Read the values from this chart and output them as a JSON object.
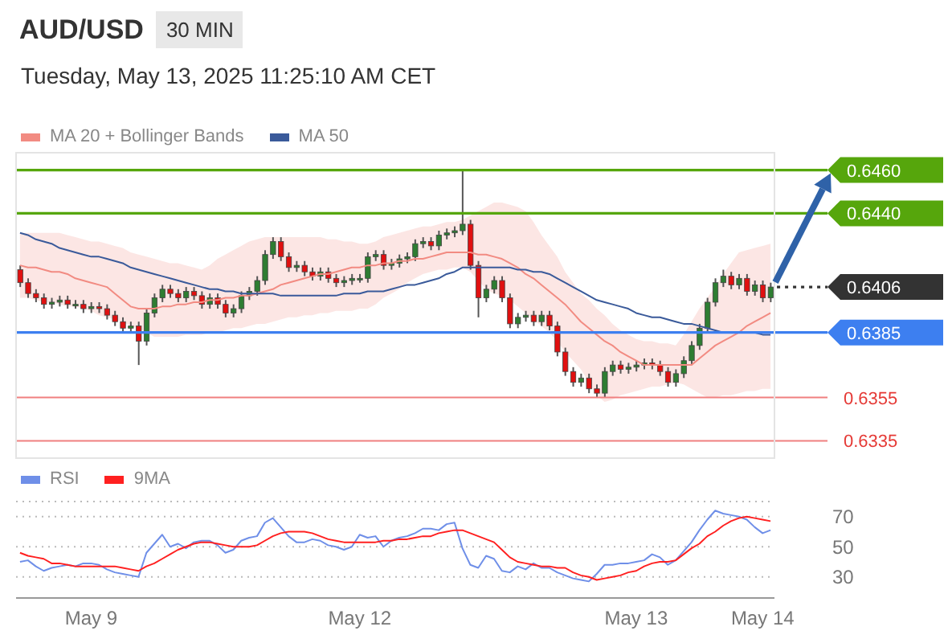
{
  "chart_data": [
    {
      "type": "candlestick",
      "title": "AUD/USD",
      "subtitle": "Tuesday, May 13, 2025 11:25:10 AM CET",
      "annotations": [
        "30 MIN"
      ],
      "legend": "top left",
      "tick_labels": false,
      "ylim": [
        0.6327,
        0.6468
      ],
      "ohlc": [
        [
          0.6414,
          0.6416,
          0.6406,
          0.6408
        ],
        [
          0.6408,
          0.641,
          0.6401,
          0.6403
        ],
        [
          0.6403,
          0.6405,
          0.6399,
          0.6401
        ],
        [
          0.6401,
          0.6403,
          0.6396,
          0.6398
        ],
        [
          0.6398,
          0.6401,
          0.6396,
          0.6399
        ],
        [
          0.6399,
          0.6402,
          0.6397,
          0.64
        ],
        [
          0.64,
          0.6402,
          0.6396,
          0.6398
        ],
        [
          0.6398,
          0.64,
          0.6396,
          0.6398
        ],
        [
          0.6398,
          0.64,
          0.6394,
          0.6396
        ],
        [
          0.6396,
          0.6399,
          0.6394,
          0.6397
        ],
        [
          0.6397,
          0.6399,
          0.6394,
          0.6396
        ],
        [
          0.6396,
          0.6398,
          0.6391,
          0.6393
        ],
        [
          0.6393,
          0.6395,
          0.6388,
          0.639
        ],
        [
          0.639,
          0.6392,
          0.6385,
          0.6387
        ],
        [
          0.6387,
          0.639,
          0.6385,
          0.6388
        ],
        [
          0.6388,
          0.639,
          0.637,
          0.6381
        ],
        [
          0.6381,
          0.6396,
          0.6379,
          0.6394
        ],
        [
          0.6394,
          0.6403,
          0.6392,
          0.6401
        ],
        [
          0.6401,
          0.6407,
          0.6399,
          0.6405
        ],
        [
          0.6405,
          0.6407,
          0.6401,
          0.6403
        ],
        [
          0.6403,
          0.6405,
          0.6399,
          0.6401
        ],
        [
          0.6401,
          0.6406,
          0.6399,
          0.6404
        ],
        [
          0.6404,
          0.6406,
          0.64,
          0.6402
        ],
        [
          0.6402,
          0.6404,
          0.6396,
          0.6398
        ],
        [
          0.6398,
          0.6403,
          0.6396,
          0.6401
        ],
        [
          0.6401,
          0.6403,
          0.6396,
          0.6398
        ],
        [
          0.6398,
          0.64,
          0.6392,
          0.6394
        ],
        [
          0.6394,
          0.6398,
          0.6392,
          0.6396
        ],
        [
          0.6396,
          0.6404,
          0.6394,
          0.6402
        ],
        [
          0.6402,
          0.6406,
          0.64,
          0.6404
        ],
        [
          0.6404,
          0.6411,
          0.6402,
          0.6409
        ],
        [
          0.6409,
          0.6423,
          0.6407,
          0.6421
        ],
        [
          0.6421,
          0.6429,
          0.6419,
          0.6427
        ],
        [
          0.6427,
          0.6429,
          0.6418,
          0.642
        ],
        [
          0.642,
          0.6422,
          0.6413,
          0.6415
        ],
        [
          0.6415,
          0.6418,
          0.6413,
          0.6416
        ],
        [
          0.6416,
          0.6418,
          0.6411,
          0.6413
        ],
        [
          0.6413,
          0.6415,
          0.6409,
          0.6411
        ],
        [
          0.6411,
          0.6415,
          0.6409,
          0.6413
        ],
        [
          0.6413,
          0.6415,
          0.6408,
          0.641
        ],
        [
          0.641,
          0.6412,
          0.6406,
          0.6408
        ],
        [
          0.6408,
          0.6411,
          0.6406,
          0.6409
        ],
        [
          0.6409,
          0.6412,
          0.6407,
          0.641
        ],
        [
          0.641,
          0.6412,
          0.6408,
          0.641
        ],
        [
          0.641,
          0.6422,
          0.6408,
          0.642
        ],
        [
          0.642,
          0.6423,
          0.6418,
          0.6421
        ],
        [
          0.6421,
          0.6423,
          0.6414,
          0.6416
        ],
        [
          0.6416,
          0.6419,
          0.6414,
          0.6417
        ],
        [
          0.6417,
          0.6421,
          0.6415,
          0.6419
        ],
        [
          0.6419,
          0.6422,
          0.6417,
          0.642
        ],
        [
          0.642,
          0.6428,
          0.6418,
          0.6426
        ],
        [
          0.6426,
          0.6429,
          0.6424,
          0.6427
        ],
        [
          0.6427,
          0.6429,
          0.6423,
          0.6425
        ],
        [
          0.6425,
          0.6432,
          0.6423,
          0.643
        ],
        [
          0.643,
          0.6433,
          0.6428,
          0.6431
        ],
        [
          0.6431,
          0.6434,
          0.6429,
          0.6432
        ],
        [
          0.6432,
          0.646,
          0.643,
          0.6435
        ],
        [
          0.6435,
          0.6437,
          0.6414,
          0.6416
        ],
        [
          0.6416,
          0.6418,
          0.6392,
          0.6401
        ],
        [
          0.6401,
          0.6407,
          0.6399,
          0.6405
        ],
        [
          0.6405,
          0.6411,
          0.6403,
          0.6409
        ],
        [
          0.6409,
          0.6411,
          0.6399,
          0.6401
        ],
        [
          0.6401,
          0.6403,
          0.6387,
          0.6389
        ],
        [
          0.6389,
          0.6394,
          0.6387,
          0.6392
        ],
        [
          0.6392,
          0.6395,
          0.639,
          0.6393
        ],
        [
          0.6393,
          0.6395,
          0.6388,
          0.639
        ],
        [
          0.639,
          0.6395,
          0.6388,
          0.6393
        ],
        [
          0.6393,
          0.6395,
          0.6386,
          0.6388
        ],
        [
          0.6388,
          0.639,
          0.6374,
          0.6376
        ],
        [
          0.6376,
          0.6378,
          0.6365,
          0.6367
        ],
        [
          0.6367,
          0.6369,
          0.636,
          0.6362
        ],
        [
          0.6362,
          0.6366,
          0.636,
          0.6364
        ],
        [
          0.6364,
          0.6366,
          0.6357,
          0.6359
        ],
        [
          0.6359,
          0.6361,
          0.6355,
          0.6357
        ],
        [
          0.6357,
          0.6369,
          0.6355,
          0.6367
        ],
        [
          0.6367,
          0.6372,
          0.6365,
          0.637
        ],
        [
          0.637,
          0.6372,
          0.6366,
          0.6368
        ],
        [
          0.6368,
          0.6371,
          0.6366,
          0.6369
        ],
        [
          0.6369,
          0.6372,
          0.6367,
          0.637
        ],
        [
          0.637,
          0.6373,
          0.6368,
          0.6371
        ],
        [
          0.6371,
          0.6373,
          0.6368,
          0.637
        ],
        [
          0.637,
          0.6372,
          0.6365,
          0.6367
        ],
        [
          0.6367,
          0.6369,
          0.636,
          0.6362
        ],
        [
          0.6362,
          0.6368,
          0.636,
          0.6366
        ],
        [
          0.6366,
          0.6374,
          0.6364,
          0.6372
        ],
        [
          0.6372,
          0.6381,
          0.637,
          0.6379
        ],
        [
          0.6379,
          0.6389,
          0.6377,
          0.6387
        ],
        [
          0.6387,
          0.6401,
          0.6385,
          0.6399
        ],
        [
          0.6399,
          0.641,
          0.6397,
          0.6408
        ],
        [
          0.6408,
          0.6414,
          0.6406,
          0.6411
        ],
        [
          0.6411,
          0.6413,
          0.6405,
          0.6407
        ],
        [
          0.6407,
          0.6412,
          0.6405,
          0.641
        ],
        [
          0.641,
          0.6412,
          0.6402,
          0.6404
        ],
        [
          0.6404,
          0.6409,
          0.6402,
          0.6407
        ],
        [
          0.6407,
          0.6409,
          0.6399,
          0.6401
        ],
        [
          0.6401,
          0.6408,
          0.6399,
          0.6406
        ]
      ],
      "series": [
        {
          "name": "MA 20 + Bollinger Bands",
          "type": "line",
          "color": "#f28b82",
          "values": [
            0.6416,
            0.6415,
            0.6415,
            0.6414,
            0.6413,
            0.6413,
            0.6412,
            0.641,
            0.6409,
            0.6408,
            0.6407,
            0.6406,
            0.6403,
            0.64,
            0.6397,
            0.6396,
            0.6396,
            0.6396,
            0.6397,
            0.6397,
            0.6398,
            0.6398,
            0.6399,
            0.6399,
            0.64,
            0.64,
            0.6401,
            0.6401,
            0.6402,
            0.6402,
            0.6403,
            0.6404,
            0.6405,
            0.6407,
            0.6408,
            0.6409,
            0.641,
            0.6411,
            0.6412,
            0.6412,
            0.6413,
            0.6414,
            0.6415,
            0.6415,
            0.6416,
            0.6416,
            0.6417,
            0.6417,
            0.6418,
            0.6418,
            0.6419,
            0.6419,
            0.642,
            0.6421,
            0.6422,
            0.6422,
            0.6422,
            0.6422,
            0.6421,
            0.6421,
            0.642,
            0.6419,
            0.6417,
            0.6415,
            0.6412,
            0.641,
            0.6407,
            0.6404,
            0.6401,
            0.6398,
            0.6394,
            0.639,
            0.6387,
            0.6384,
            0.6381,
            0.6379,
            0.6376,
            0.6374,
            0.6372,
            0.637,
            0.637,
            0.637,
            0.637,
            0.637,
            0.637,
            0.637,
            0.6373,
            0.6376,
            0.6379,
            0.6381,
            0.6383,
            0.6385,
            0.6388,
            0.639,
            0.6392,
            0.6394
          ],
          "lower": [
            0.6401,
            0.6401,
            0.64,
            0.6399,
            0.6399,
            0.6398,
            0.6397,
            0.6397,
            0.6396,
            0.6395,
            0.6393,
            0.6392,
            0.6391,
            0.639,
            0.6388,
            0.6387,
            0.6385,
            0.6383,
            0.6383,
            0.6383,
            0.6383,
            0.6384,
            0.6384,
            0.6384,
            0.6385,
            0.6385,
            0.6386,
            0.6387,
            0.6387,
            0.6388,
            0.6389,
            0.6389,
            0.639,
            0.6391,
            0.6392,
            0.6392,
            0.6393,
            0.6393,
            0.6394,
            0.6394,
            0.6395,
            0.6395,
            0.6395,
            0.6396,
            0.6396,
            0.6398,
            0.6401,
            0.6403,
            0.6405,
            0.6408,
            0.641,
            0.6412,
            0.6413,
            0.6414,
            0.6414,
            0.6415,
            0.6415,
            0.6413,
            0.6409,
            0.6405,
            0.6403,
            0.6402,
            0.64,
            0.6397,
            0.6394,
            0.6391,
            0.6388,
            0.6385,
            0.6381,
            0.6376,
            0.6372,
            0.6368,
            0.6362,
            0.6356,
            0.6353,
            0.6354,
            0.6356,
            0.6357,
            0.6358,
            0.6359,
            0.636,
            0.636,
            0.6361,
            0.6362,
            0.6361,
            0.6359,
            0.6357,
            0.6355,
            0.6355,
            0.6356,
            0.6356,
            0.6357,
            0.6358,
            0.6358,
            0.6359,
            0.6359
          ],
          "upper": [
            0.6431,
            0.6431,
            0.6431,
            0.6431,
            0.6431,
            0.6431,
            0.643,
            0.6429,
            0.6428,
            0.6427,
            0.6427,
            0.6426,
            0.6425,
            0.6424,
            0.6422,
            0.6421,
            0.642,
            0.6419,
            0.6418,
            0.6417,
            0.6417,
            0.6416,
            0.6415,
            0.6414,
            0.6416,
            0.6419,
            0.6421,
            0.6423,
            0.6425,
            0.6427,
            0.6428,
            0.6429,
            0.6429,
            0.6429,
            0.6429,
            0.6429,
            0.6429,
            0.6429,
            0.6429,
            0.6428,
            0.6428,
            0.6427,
            0.6427,
            0.6426,
            0.6426,
            0.6427,
            0.6429,
            0.643,
            0.6431,
            0.6432,
            0.6433,
            0.6434,
            0.6434,
            0.6435,
            0.6436,
            0.6436,
            0.6437,
            0.6439,
            0.6441,
            0.6443,
            0.6445,
            0.6445,
            0.6444,
            0.6443,
            0.6441,
            0.6436,
            0.643,
            0.6425,
            0.642,
            0.6413,
            0.6408,
            0.6403,
            0.64,
            0.6396,
            0.6393,
            0.6389,
            0.6386,
            0.6384,
            0.6382,
            0.6381,
            0.6381,
            0.638,
            0.638,
            0.6379,
            0.6384,
            0.639,
            0.6396,
            0.6401,
            0.6406,
            0.6412,
            0.6417,
            0.6422,
            0.6423,
            0.6424,
            0.6425,
            0.6426
          ]
        },
        {
          "name": "MA 50",
          "type": "line",
          "color": "#3a5a9a",
          "values": [
            0.6431,
            0.643,
            0.6428,
            0.6427,
            0.6426,
            0.6424,
            0.6423,
            0.6422,
            0.6421,
            0.642,
            0.642,
            0.6419,
            0.6418,
            0.6417,
            0.6415,
            0.6414,
            0.6413,
            0.6412,
            0.6411,
            0.641,
            0.6409,
            0.6408,
            0.6407,
            0.6406,
            0.6405,
            0.6405,
            0.6404,
            0.6404,
            0.6403,
            0.6403,
            0.6403,
            0.6403,
            0.6403,
            0.6402,
            0.6402,
            0.6402,
            0.6402,
            0.6402,
            0.6402,
            0.6402,
            0.6402,
            0.6403,
            0.6403,
            0.6403,
            0.6404,
            0.6404,
            0.6404,
            0.6405,
            0.6406,
            0.6407,
            0.6407,
            0.6408,
            0.6409,
            0.641,
            0.6412,
            0.6413,
            0.6415,
            0.6415,
            0.6415,
            0.6415,
            0.6415,
            0.6415,
            0.6415,
            0.6414,
            0.6414,
            0.6413,
            0.6413,
            0.6412,
            0.641,
            0.6408,
            0.6406,
            0.6404,
            0.6402,
            0.64,
            0.6399,
            0.6398,
            0.6397,
            0.6396,
            0.6394,
            0.6393,
            0.6392,
            0.6392,
            0.6391,
            0.639,
            0.6389,
            0.6389,
            0.6388,
            0.6387,
            0.6386,
            0.6385,
            0.6385,
            0.6385,
            0.6385,
            0.6385,
            0.6384,
            0.6384
          ]
        }
      ],
      "ref_lines": [
        {
          "axis": "y",
          "value": 0.646,
          "label": "0.6460",
          "color": "#56a60c"
        },
        {
          "axis": "y",
          "value": 0.644,
          "label": "0.6440",
          "color": "#56a60c"
        },
        {
          "axis": "y",
          "value": 0.6406,
          "label": "0.6406",
          "color": "#333333",
          "line_style": "dotted"
        },
        {
          "axis": "y",
          "value": 0.6385,
          "label": "0.6385",
          "color": "#3d7ff0"
        },
        {
          "axis": "y",
          "value": 0.6355,
          "label": "0.6355",
          "color": "#f08080"
        },
        {
          "axis": "y",
          "value": 0.6335,
          "label": "0.6335",
          "color": "#f08080"
        }
      ]
    },
    {
      "type": "line",
      "legend": "top left",
      "grid": "y",
      "ylim": [
        16,
        80
      ],
      "yticks": [
        30,
        50,
        70
      ],
      "categories": [
        null,
        null,
        null,
        null,
        null,
        null,
        null,
        null,
        null,
        "May 9",
        null,
        null,
        null,
        null,
        null,
        null,
        null,
        null,
        null,
        null,
        null,
        null,
        null,
        null,
        null,
        null,
        null,
        null,
        null,
        null,
        null,
        null,
        null,
        null,
        null,
        null,
        null,
        null,
        null,
        null,
        null,
        null,
        null,
        "May 12",
        null,
        null,
        null,
        null,
        null,
        null,
        null,
        null,
        null,
        null,
        null,
        null,
        null,
        null,
        null,
        null,
        null,
        null,
        null,
        null,
        null,
        null,
        null,
        null,
        null,
        null,
        null,
        null,
        null,
        null,
        null,
        null,
        null,
        null,
        "May 13",
        null,
        null,
        null,
        null,
        null,
        null,
        null,
        null,
        null,
        null,
        null,
        null,
        null,
        null,
        null,
        "May 14",
        null
      ],
      "series": [
        {
          "name": "RSI",
          "color": "#6f8fe8",
          "values": [
            40,
            41,
            37,
            34,
            36,
            37,
            38,
            37,
            39,
            39,
            38,
            35,
            33,
            32,
            31,
            30,
            46,
            52,
            58,
            50,
            52,
            49,
            53,
            54,
            54,
            51,
            46,
            48,
            54,
            56,
            57,
            66,
            69,
            63,
            57,
            53,
            53,
            55,
            54,
            51,
            50,
            48,
            50,
            58,
            56,
            57,
            50,
            54,
            56,
            57,
            59,
            62,
            62,
            61,
            65,
            66,
            49,
            38,
            36,
            44,
            42,
            34,
            33,
            37,
            35,
            39,
            36,
            36,
            33,
            31,
            29,
            28,
            27,
            32,
            38,
            38,
            39,
            39,
            40,
            41,
            45,
            43,
            38,
            41,
            47,
            53,
            61,
            68,
            74,
            72,
            71,
            70,
            68,
            63,
            59,
            61
          ]
        },
        {
          "name": "9MA",
          "color": "#ff2020",
          "values": [
            46,
            44,
            43,
            42,
            39,
            39,
            38,
            37,
            37,
            37,
            37,
            37,
            37,
            36,
            35,
            34,
            37,
            39,
            42,
            45,
            48,
            50,
            52,
            53,
            53,
            52,
            51,
            50,
            50,
            50,
            51,
            54,
            57,
            59,
            60,
            60,
            60,
            59,
            57,
            55,
            54,
            53,
            53,
            53,
            53,
            53,
            54,
            54,
            55,
            55,
            56,
            57,
            57,
            59,
            60,
            61,
            61,
            59,
            57,
            55,
            53,
            48,
            43,
            40,
            39,
            38,
            37,
            37,
            36,
            36,
            33,
            31,
            30,
            28,
            29,
            30,
            31,
            33,
            34,
            37,
            39,
            40,
            40,
            41,
            45,
            49,
            52,
            57,
            60,
            64,
            67,
            69,
            70,
            69,
            68,
            67
          ]
        }
      ]
    }
  ]
}
